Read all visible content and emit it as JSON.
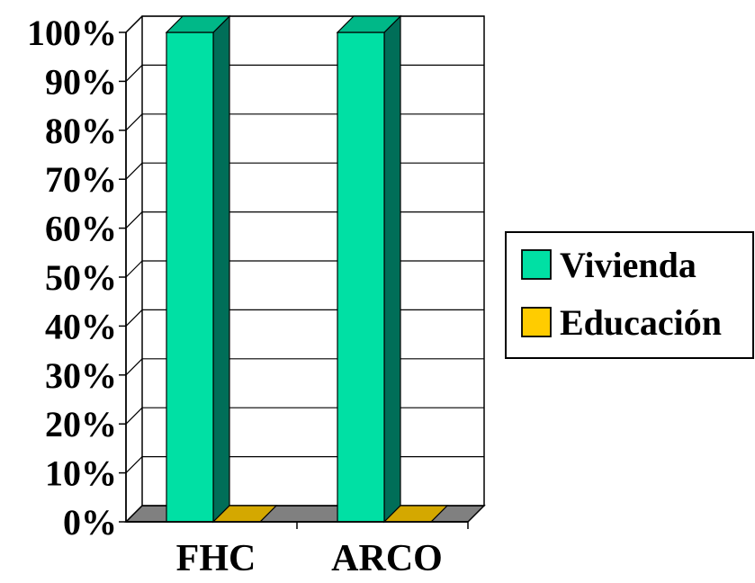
{
  "chart_data": {
    "type": "bar",
    "style": "3d-clustered-column",
    "categories": [
      "FHC",
      "ARCO"
    ],
    "series": [
      {
        "name": "Vivienda",
        "values": [
          100,
          100
        ],
        "color": "#00E0A4",
        "side_color": "#006E58",
        "top_color": "#00B888"
      },
      {
        "name": "Educación",
        "values": [
          0,
          0
        ],
        "color": "#FFCC00",
        "side_color": "#8C7000",
        "top_color": "#D4A800"
      }
    ],
    "ylim": [
      0,
      100
    ],
    "yticks": [
      "0%",
      "10%",
      "20%",
      "30%",
      "40%",
      "50%",
      "60%",
      "70%",
      "80%",
      "90%",
      "100%"
    ],
    "grid": true,
    "legend": "right",
    "floor_color": "#808080"
  }
}
